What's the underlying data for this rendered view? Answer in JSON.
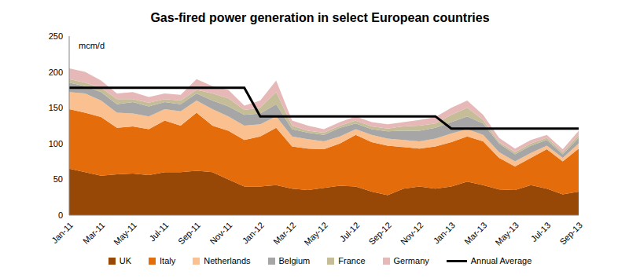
{
  "chart_data": {
    "type": "area",
    "title": "Gas-fired power generation in select European countries",
    "annotation": "mcm/d",
    "stacked": true,
    "grid": false,
    "legend": "bottom",
    "categories": [
      "Jan-11",
      null,
      "Mar-11",
      null,
      "May-11",
      null,
      "Jul-11",
      null,
      "Sep-11",
      null,
      "Nov-11",
      null,
      "Jan-12",
      null,
      "Mar-12",
      null,
      "May-12",
      null,
      "Jul-12",
      null,
      "Sep-12",
      null,
      "Nov-12",
      null,
      "Jan-13",
      null,
      "Mar-13",
      null,
      "May-13",
      null,
      "Jul-13",
      null,
      "Sep-13"
    ],
    "ylim": [
      0,
      250
    ],
    "yticks": [
      0,
      50,
      100,
      150,
      200,
      250
    ],
    "series": [
      {
        "name": "UK",
        "type": "area",
        "color": "#974706",
        "values": [
          65,
          60,
          55,
          57,
          58,
          56,
          60,
          60,
          62,
          60,
          50,
          40,
          40,
          42,
          37,
          35,
          38,
          41,
          40,
          33,
          28,
          37,
          40,
          37,
          40,
          47,
          42,
          36,
          35,
          42,
          37,
          29,
          33
        ]
      },
      {
        "name": "Italy",
        "type": "area",
        "color": "#E46C0A",
        "values": [
          83,
          83,
          82,
          65,
          66,
          64,
          72,
          65,
          81,
          65,
          68,
          65,
          70,
          80,
          59,
          58,
          54,
          59,
          72,
          69,
          69,
          58,
          53,
          59,
          62,
          63,
          61,
          44,
          33,
          38,
          55,
          46,
          60
        ]
      },
      {
        "name": "Netherlands",
        "type": "area",
        "color": "#FAC090",
        "values": [
          24,
          27,
          23,
          21,
          18,
          18,
          16,
          20,
          17,
          23,
          20,
          20,
          17,
          16,
          14,
          13,
          11,
          10,
          8,
          10,
          10,
          10,
          10,
          11,
          12,
          10,
          9,
          8,
          7,
          7,
          5,
          5,
          7
        ]
      },
      {
        "name": "Belgium",
        "type": "area",
        "color": "#A6A6A6",
        "values": [
          13,
          10,
          12,
          12,
          16,
          14,
          10,
          10,
          10,
          12,
          14,
          15,
          15,
          17,
          10,
          9,
          9,
          12,
          8,
          8,
          10,
          13,
          15,
          15,
          16,
          18,
          16,
          12,
          10,
          10,
          8,
          5,
          8
        ]
      },
      {
        "name": "France",
        "type": "area",
        "color": "#C4BD97",
        "values": [
          5,
          5,
          6,
          7,
          4,
          5,
          4,
          5,
          5,
          10,
          11,
          7,
          8,
          17,
          5,
          3,
          3,
          3,
          4,
          4,
          4,
          6,
          7,
          6,
          10,
          12,
          5,
          2,
          3,
          3,
          3,
          3,
          4
        ]
      },
      {
        "name": "Germany",
        "type": "area",
        "color": "#E6B9B8",
        "values": [
          15,
          15,
          10,
          8,
          10,
          8,
          8,
          8,
          15,
          10,
          12,
          6,
          10,
          16,
          7,
          7,
          5,
          5,
          6,
          6,
          6,
          6,
          8,
          9,
          10,
          10,
          7,
          6,
          5,
          5,
          4,
          4,
          6
        ]
      },
      {
        "name": "Annual Average",
        "type": "line",
        "color": "#000000",
        "values": [
          178,
          178,
          178,
          178,
          178,
          178,
          178,
          178,
          178,
          178,
          178,
          178,
          138,
          138,
          138,
          138,
          138,
          138,
          138,
          138,
          138,
          138,
          138,
          138,
          121,
          121,
          121,
          121,
          121,
          121,
          121,
          121,
          121
        ]
      }
    ]
  }
}
